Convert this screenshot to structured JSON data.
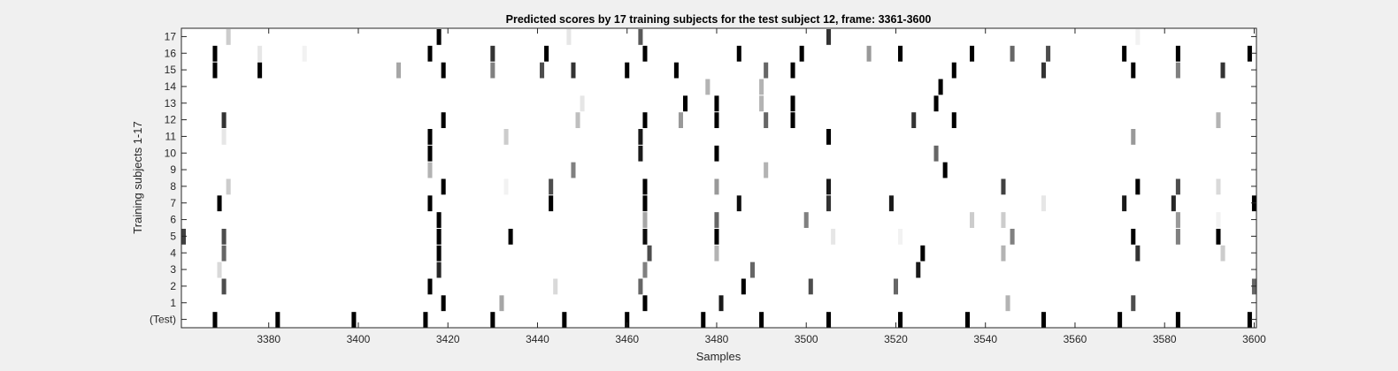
{
  "chart_data": {
    "type": "heatmap",
    "title": "Predicted scores by 17 training subjects for the test subject 12, frame: 3361-3600",
    "xlabel": "Samples",
    "ylabel": "Training subjects 1-17",
    "xlim": [
      3361,
      3600
    ],
    "x_ticks": [
      3380,
      3400,
      3420,
      3440,
      3460,
      3480,
      3500,
      3520,
      3540,
      3560,
      3580,
      3600
    ],
    "rows": [
      "(Test)",
      "1",
      "2",
      "3",
      "4",
      "5",
      "6",
      "7",
      "8",
      "9",
      "10",
      "11",
      "12",
      "13",
      "14",
      "15",
      "16",
      "17"
    ],
    "colormap": "gray-inverted",
    "value_range": [
      0,
      1
    ],
    "grid": false,
    "cells": [
      {
        "row": "(Test)",
        "points": [
          [
            3368,
            1
          ],
          [
            3382,
            1
          ],
          [
            3399,
            1
          ],
          [
            3415,
            1
          ],
          [
            3430,
            1
          ],
          [
            3446,
            1
          ],
          [
            3460,
            1
          ],
          [
            3477,
            1
          ],
          [
            3490,
            1
          ],
          [
            3505,
            1
          ],
          [
            3521,
            1
          ],
          [
            3536,
            1
          ],
          [
            3553,
            1
          ],
          [
            3570,
            1
          ],
          [
            3583,
            1
          ],
          [
            3599,
            1
          ]
        ]
      },
      {
        "row": "1",
        "points": [
          [
            3419,
            1
          ],
          [
            3432,
            0.35
          ],
          [
            3464,
            1
          ],
          [
            3481,
            0.9
          ],
          [
            3545,
            0.3
          ],
          [
            3573,
            0.7
          ]
        ]
      },
      {
        "row": "2",
        "points": [
          [
            3370,
            0.7
          ],
          [
            3416,
            1
          ],
          [
            3444,
            0.15
          ],
          [
            3463,
            0.6
          ],
          [
            3486,
            1
          ],
          [
            3501,
            0.7
          ],
          [
            3520,
            0.6
          ],
          [
            3600,
            0.6
          ]
        ]
      },
      {
        "row": "3",
        "points": [
          [
            3369,
            0.15
          ],
          [
            3418,
            0.85
          ],
          [
            3464,
            0.5
          ],
          [
            3488,
            0.6
          ],
          [
            3525,
            0.9
          ]
        ]
      },
      {
        "row": "4",
        "points": [
          [
            3370,
            0.6
          ],
          [
            3418,
            1
          ],
          [
            3465,
            0.7
          ],
          [
            3480,
            0.3
          ],
          [
            3526,
            1
          ],
          [
            3544,
            0.3
          ],
          [
            3574,
            0.8
          ],
          [
            3593,
            0.2
          ]
        ]
      },
      {
        "row": "5",
        "points": [
          [
            3361,
            0.75
          ],
          [
            3370,
            0.7
          ],
          [
            3418,
            1
          ],
          [
            3434,
            1
          ],
          [
            3464,
            0.95
          ],
          [
            3480,
            1
          ],
          [
            3506,
            0.1
          ],
          [
            3521,
            0.05
          ],
          [
            3546,
            0.5
          ],
          [
            3573,
            1
          ],
          [
            3583,
            0.5
          ],
          [
            3592,
            1
          ]
        ]
      },
      {
        "row": "6",
        "points": [
          [
            3418,
            1
          ],
          [
            3464,
            0.35
          ],
          [
            3480,
            0.6
          ],
          [
            3500,
            0.5
          ],
          [
            3537,
            0.2
          ],
          [
            3544,
            0.2
          ],
          [
            3583,
            0.4
          ],
          [
            3592,
            0.05
          ]
        ]
      },
      {
        "row": "7",
        "points": [
          [
            3369,
            1
          ],
          [
            3416,
            1
          ],
          [
            3443,
            1
          ],
          [
            3464,
            1
          ],
          [
            3485,
            0.95
          ],
          [
            3505,
            0.8
          ],
          [
            3519,
            0.9
          ],
          [
            3553,
            0.1
          ],
          [
            3571,
            0.9
          ],
          [
            3582,
            0.85
          ],
          [
            3600,
            1
          ]
        ]
      },
      {
        "row": "8",
        "points": [
          [
            3371,
            0.2
          ],
          [
            3419,
            1
          ],
          [
            3433,
            0.05
          ],
          [
            3443,
            0.7
          ],
          [
            3464,
            1
          ],
          [
            3480,
            0.4
          ],
          [
            3505,
            0.9
          ],
          [
            3544,
            0.75
          ],
          [
            3574,
            1
          ],
          [
            3583,
            0.7
          ],
          [
            3592,
            0.15
          ]
        ]
      },
      {
        "row": "9",
        "points": [
          [
            3416,
            0.3
          ],
          [
            3448,
            0.5
          ],
          [
            3491,
            0.3
          ],
          [
            3531,
            1
          ]
        ]
      },
      {
        "row": "10",
        "points": [
          [
            3416,
            1
          ],
          [
            3463,
            0.9
          ],
          [
            3480,
            1
          ],
          [
            3529,
            0.6
          ]
        ]
      },
      {
        "row": "11",
        "points": [
          [
            3370,
            0.1
          ],
          [
            3416,
            1
          ],
          [
            3433,
            0.2
          ],
          [
            3463,
            0.9
          ],
          [
            3505,
            1
          ],
          [
            3573,
            0.4
          ]
        ]
      },
      {
        "row": "12",
        "points": [
          [
            3370,
            0.8
          ],
          [
            3419,
            1
          ],
          [
            3449,
            0.25
          ],
          [
            3464,
            1
          ],
          [
            3472,
            0.4
          ],
          [
            3480,
            1
          ],
          [
            3491,
            0.6
          ],
          [
            3497,
            1
          ],
          [
            3524,
            0.8
          ],
          [
            3533,
            1
          ],
          [
            3592,
            0.3
          ]
        ]
      },
      {
        "row": "13",
        "points": [
          [
            3450,
            0.1
          ],
          [
            3473,
            1
          ],
          [
            3480,
            1
          ],
          [
            3490,
            0.3
          ],
          [
            3497,
            1
          ],
          [
            3529,
            1
          ]
        ]
      },
      {
        "row": "14",
        "points": [
          [
            3478,
            0.3
          ],
          [
            3490,
            0.3
          ],
          [
            3530,
            1
          ]
        ]
      },
      {
        "row": "15",
        "points": [
          [
            3368,
            1
          ],
          [
            3378,
            1
          ],
          [
            3409,
            0.35
          ],
          [
            3419,
            1
          ],
          [
            3430,
            0.5
          ],
          [
            3441,
            0.7
          ],
          [
            3448,
            0.8
          ],
          [
            3460,
            1
          ],
          [
            3471,
            1
          ],
          [
            3491,
            0.6
          ],
          [
            3497,
            1
          ],
          [
            3533,
            1
          ],
          [
            3553,
            0.8
          ],
          [
            3573,
            1
          ],
          [
            3583,
            0.5
          ],
          [
            3593,
            0.8
          ]
        ]
      },
      {
        "row": "16",
        "points": [
          [
            3368,
            1
          ],
          [
            3378,
            0.1
          ],
          [
            3388,
            0.05
          ],
          [
            3416,
            1
          ],
          [
            3430,
            0.8
          ],
          [
            3442,
            1
          ],
          [
            3464,
            1
          ],
          [
            3485,
            1
          ],
          [
            3499,
            1
          ],
          [
            3514,
            0.4
          ],
          [
            3521,
            1
          ],
          [
            3537,
            1
          ],
          [
            3546,
            0.6
          ],
          [
            3554,
            0.7
          ],
          [
            3571,
            1
          ],
          [
            3583,
            1
          ],
          [
            3599,
            1
          ]
        ]
      },
      {
        "row": "17",
        "points": [
          [
            3371,
            0.2
          ],
          [
            3418,
            1
          ],
          [
            3447,
            0.1
          ],
          [
            3463,
            0.65
          ],
          [
            3505,
            0.8
          ],
          [
            3574,
            0.05
          ]
        ]
      }
    ]
  }
}
